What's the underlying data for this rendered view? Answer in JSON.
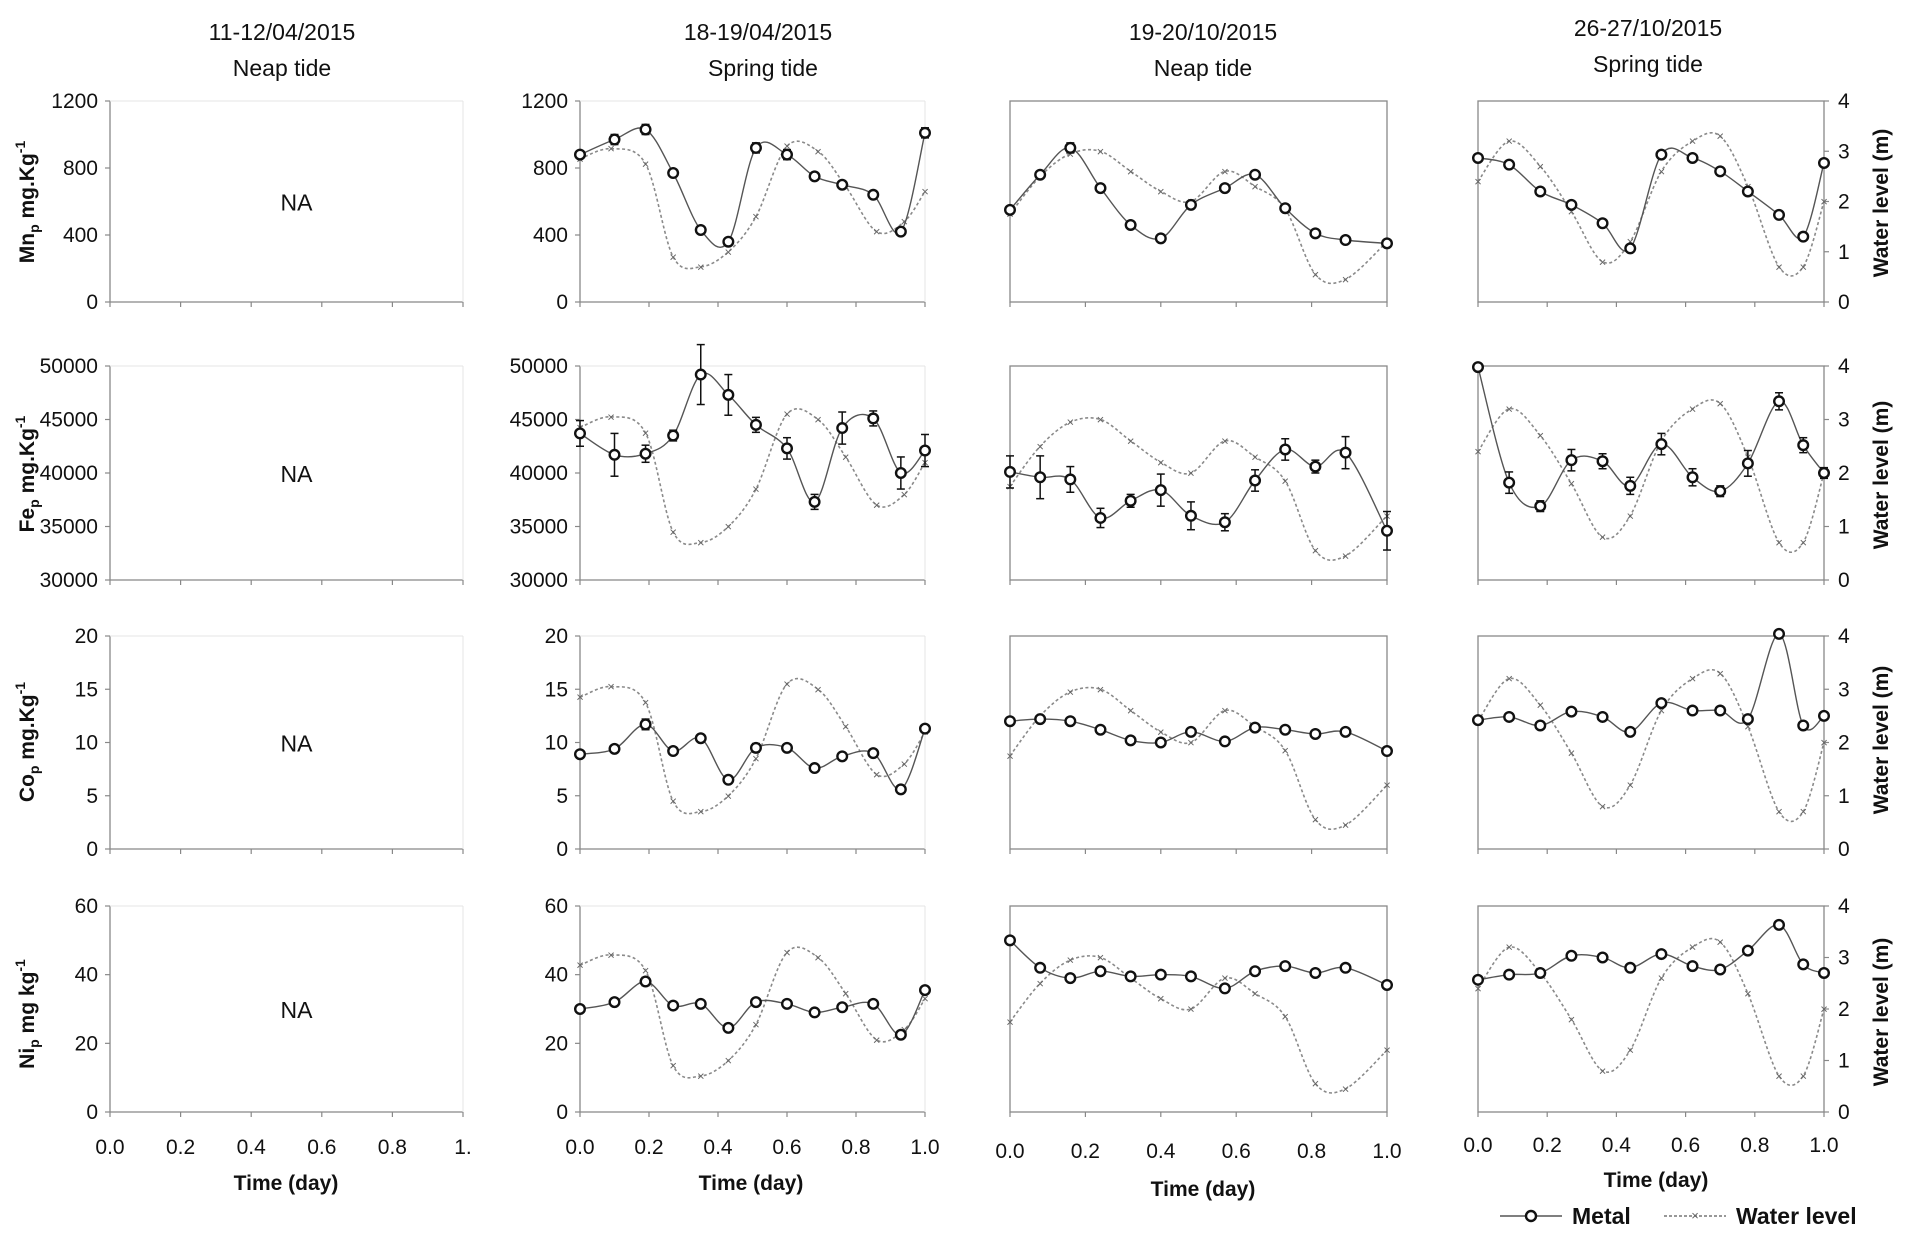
{
  "chart_data": {
    "type": "line",
    "columns": [
      {
        "title": "11-12/04/2015",
        "subtitle": "Neap tide"
      },
      {
        "title": "18-19/04/2015",
        "subtitle": "Spring tide"
      },
      {
        "title": "19-20/10/2015",
        "subtitle": "Neap tide"
      },
      {
        "title": "26-27/10/2015",
        "subtitle": "Spring tide"
      }
    ],
    "rows": [
      {
        "metal": "Mn",
        "ylabel_main": "Mn",
        "ylabel_sub": "p",
        "ylabel_rest": " mg.Kg",
        "ylabel_sup": "-1",
        "ylim": [
          0,
          1200
        ],
        "yticks": [
          "0",
          "400",
          "800",
          "1200"
        ],
        "ytick_values": [
          0,
          400,
          800,
          1200
        ]
      },
      {
        "metal": "Fe",
        "ylabel_main": "Fe",
        "ylabel_sub": "p",
        "ylabel_rest": " mg.Kg",
        "ylabel_sup": "-1",
        "ylim": [
          30000,
          50000
        ],
        "yticks": [
          "30000",
          "35000",
          "40000",
          "45000",
          "50000"
        ],
        "ytick_values": [
          30000,
          35000,
          40000,
          45000,
          50000
        ]
      },
      {
        "metal": "Co",
        "ylabel_main": "Co",
        "ylabel_sub": "p",
        "ylabel_rest": " mg.Kg",
        "ylabel_sup": "-1",
        "ylim": [
          0,
          20
        ],
        "yticks": [
          "0",
          "5",
          "10",
          "15",
          "20"
        ],
        "ytick_values": [
          0,
          5,
          10,
          15,
          20
        ]
      },
      {
        "metal": "Ni",
        "ylabel_main": "Ni",
        "ylabel_sub": "p",
        "ylabel_rest": " mg kg",
        "ylabel_sup": "-1",
        "ylim": [
          0,
          60
        ],
        "yticks": [
          "0",
          "20",
          "40",
          "60"
        ],
        "ytick_values": [
          0,
          20,
          40,
          60
        ]
      }
    ],
    "water_axis": {
      "label": "Water level (m)",
      "ylim": [
        0,
        4
      ],
      "yticks": [
        "0",
        "1",
        "2",
        "3",
        "4"
      ],
      "ytick_values": [
        0,
        1,
        2,
        3,
        4
      ]
    },
    "xaxis": {
      "label_by_column": [
        "Time (day)",
        "Time (day)",
        "Time  (day)",
        "Time (day)"
      ],
      "xlim": [
        0,
        1
      ],
      "xticks_by_column": [
        [
          "0.0",
          "0.2",
          "0.4",
          "0.6",
          "0.8",
          "1."
        ],
        [
          "0.0",
          "0.2",
          "0.4",
          "0.6",
          "0.8",
          "1.0"
        ],
        [
          "0.0",
          "0.2",
          "0.4",
          "0.6",
          "0.8",
          "1.0"
        ],
        [
          "0.0",
          "0.2",
          "0.4",
          "0.6",
          "0.8",
          "1.0"
        ]
      ],
      "xtick_values": [
        0,
        0.2,
        0.4,
        0.6,
        0.8,
        1.0
      ]
    },
    "na_label": "NA",
    "legend": {
      "metal": "Metal",
      "water": "Water level"
    },
    "water_level": {
      "col2": {
        "x": [
          0,
          0.09,
          0.19,
          0.27,
          0.35,
          0.43,
          0.51,
          0.6,
          0.69,
          0.77,
          0.86,
          0.94,
          1.0
        ],
        "y": [
          2.85,
          3.05,
          2.75,
          0.9,
          0.7,
          1.0,
          1.7,
          3.1,
          3.0,
          2.3,
          1.4,
          1.6,
          2.2
        ]
      },
      "col3": {
        "x": [
          0,
          0.08,
          0.16,
          0.24,
          0.32,
          0.4,
          0.48,
          0.57,
          0.65,
          0.73,
          0.81,
          0.89,
          1.0
        ],
        "y": [
          1.75,
          2.5,
          2.95,
          3.0,
          2.6,
          2.2,
          2.0,
          2.6,
          2.3,
          1.85,
          0.55,
          0.45,
          1.2
        ]
      },
      "col4": {
        "x": [
          0,
          0.09,
          0.18,
          0.27,
          0.36,
          0.44,
          0.53,
          0.62,
          0.7,
          0.78,
          0.87,
          0.94,
          1.0
        ],
        "y": [
          2.4,
          3.2,
          2.7,
          1.8,
          0.8,
          1.2,
          2.6,
          3.2,
          3.3,
          2.3,
          0.7,
          0.7,
          2.0
        ]
      }
    },
    "series": [
      {
        "row": "Mn",
        "col": 2,
        "x": [
          0,
          0.1,
          0.19,
          0.27,
          0.35,
          0.43,
          0.51,
          0.6,
          0.68,
          0.76,
          0.85,
          0.93,
          1.0
        ],
        "y": [
          880,
          970,
          1030,
          770,
          430,
          360,
          920,
          880,
          750,
          700,
          640,
          420,
          1010
        ],
        "err": [
          20,
          30,
          30,
          20,
          10,
          20,
          30,
          30,
          20,
          20,
          10,
          10,
          30
        ]
      },
      {
        "row": "Mn",
        "col": 3,
        "x": [
          0,
          0.08,
          0.16,
          0.24,
          0.32,
          0.4,
          0.48,
          0.57,
          0.65,
          0.73,
          0.81,
          0.89,
          1.0
        ],
        "y": [
          550,
          760,
          920,
          680,
          460,
          380,
          580,
          680,
          760,
          560,
          410,
          370,
          350
        ],
        "err": [
          10,
          20,
          30,
          10,
          10,
          10,
          10,
          10,
          20,
          10,
          10,
          10,
          10
        ]
      },
      {
        "row": "Mn",
        "col": 4,
        "x": [
          0,
          0.09,
          0.18,
          0.27,
          0.36,
          0.44,
          0.53,
          0.62,
          0.7,
          0.78,
          0.87,
          0.94,
          1.0
        ],
        "y": [
          860,
          820,
          660,
          580,
          470,
          320,
          880,
          860,
          780,
          660,
          520,
          390,
          830
        ],
        "err": [
          10,
          20,
          10,
          10,
          10,
          10,
          20,
          20,
          20,
          10,
          10,
          10,
          10
        ]
      },
      {
        "row": "Fe",
        "col": 2,
        "x": [
          0,
          0.1,
          0.19,
          0.27,
          0.35,
          0.43,
          0.51,
          0.6,
          0.68,
          0.76,
          0.85,
          0.93,
          1.0
        ],
        "y": [
          43700,
          41700,
          41800,
          43500,
          49200,
          47300,
          44500,
          42300,
          37300,
          44200,
          45100,
          40000,
          42100
        ],
        "err": [
          1200,
          2000,
          800,
          500,
          2800,
          1900,
          700,
          1000,
          700,
          1500,
          700,
          1500,
          1500
        ]
      },
      {
        "row": "Fe",
        "col": 3,
        "x": [
          0,
          0.08,
          0.16,
          0.24,
          0.32,
          0.4,
          0.48,
          0.57,
          0.65,
          0.73,
          0.81,
          0.89,
          1.0
        ],
        "y": [
          40100,
          39600,
          39400,
          35800,
          37400,
          38400,
          36000,
          35400,
          39300,
          42200,
          40600,
          41900,
          34600
        ],
        "err": [
          1500,
          2000,
          1200,
          900,
          600,
          1500,
          1300,
          800,
          1000,
          1000,
          600,
          1500,
          1800
        ]
      },
      {
        "row": "Fe",
        "col": 4,
        "x": [
          0,
          0.09,
          0.18,
          0.27,
          0.36,
          0.44,
          0.53,
          0.62,
          0.7,
          0.78,
          0.87,
          0.94,
          1.0
        ],
        "y": [
          49900,
          39100,
          36900,
          41200,
          41100,
          38800,
          42700,
          39600,
          38300,
          40900,
          46700,
          42600,
          40000
        ],
        "err": [
          0,
          1000,
          500,
          1000,
          700,
          800,
          1000,
          800,
          500,
          1200,
          800,
          700,
          500
        ]
      },
      {
        "row": "Co",
        "col": 2,
        "x": [
          0,
          0.1,
          0.19,
          0.27,
          0.35,
          0.43,
          0.51,
          0.6,
          0.68,
          0.76,
          0.85,
          0.93,
          1.0
        ],
        "y": [
          8.9,
          9.4,
          11.7,
          9.2,
          10.4,
          6.5,
          9.5,
          9.5,
          7.6,
          8.7,
          9.0,
          5.6,
          11.3
        ],
        "err": [
          0.2,
          0.3,
          0.5,
          0.3,
          0.3,
          0.2,
          0.4,
          0.3,
          0.2,
          0.3,
          0.2,
          0.2,
          0.3
        ]
      },
      {
        "row": "Co",
        "col": 3,
        "x": [
          0,
          0.08,
          0.16,
          0.24,
          0.32,
          0.4,
          0.48,
          0.57,
          0.65,
          0.73,
          0.81,
          0.89,
          1.0
        ],
        "y": [
          12.0,
          12.2,
          12.0,
          11.2,
          10.2,
          10.0,
          11.0,
          10.1,
          11.4,
          11.2,
          10.8,
          11.0,
          9.2
        ],
        "err": [
          0.2,
          0.2,
          0.2,
          0.2,
          0.2,
          0.2,
          0.2,
          0.2,
          0.3,
          0.2,
          0.2,
          0.2,
          0.2
        ]
      },
      {
        "row": "Co",
        "col": 4,
        "x": [
          0,
          0.09,
          0.18,
          0.27,
          0.36,
          0.44,
          0.53,
          0.62,
          0.7,
          0.78,
          0.87,
          0.94,
          1.0
        ],
        "y": [
          12.1,
          12.4,
          11.6,
          12.9,
          12.4,
          11.0,
          13.7,
          13.0,
          13.0,
          12.2,
          20.2,
          11.6,
          12.5
        ],
        "err": [
          0.2,
          0.2,
          0.3,
          0.3,
          0.3,
          0.3,
          0.3,
          0.3,
          0.3,
          0.3,
          0.2,
          0.2,
          0.2
        ]
      },
      {
        "row": "Ni",
        "col": 2,
        "x": [
          0,
          0.1,
          0.19,
          0.27,
          0.35,
          0.43,
          0.51,
          0.6,
          0.68,
          0.76,
          0.85,
          0.93,
          1.0
        ],
        "y": [
          30,
          32,
          38,
          31,
          31.5,
          24.5,
          32,
          31.5,
          29,
          30.5,
          31.5,
          22.5,
          35.5
        ],
        "err": [
          0.5,
          0.8,
          1.2,
          0.6,
          0.6,
          0.6,
          0.6,
          0.6,
          0.6,
          0.8,
          0.6,
          0.6,
          0.8
        ]
      },
      {
        "row": "Ni",
        "col": 3,
        "x": [
          0,
          0.08,
          0.16,
          0.24,
          0.32,
          0.4,
          0.48,
          0.57,
          0.65,
          0.73,
          0.81,
          0.89,
          1.0
        ],
        "y": [
          50,
          42,
          39,
          41,
          39.5,
          40,
          39.5,
          36,
          41,
          42.5,
          40.5,
          42,
          37
        ],
        "err": [
          0.5,
          0.8,
          0.6,
          0.6,
          0.6,
          0.6,
          0.6,
          0.6,
          0.6,
          0.6,
          0.6,
          0.6,
          0.6
        ]
      },
      {
        "row": "Ni",
        "col": 4,
        "x": [
          0,
          0.09,
          0.18,
          0.27,
          0.36,
          0.44,
          0.53,
          0.62,
          0.7,
          0.78,
          0.87,
          0.94,
          1.0
        ],
        "y": [
          38.5,
          40,
          40.5,
          45.5,
          45,
          42,
          46,
          42.5,
          41.5,
          47,
          54.5,
          43,
          40.5
        ],
        "err": [
          0.6,
          0.6,
          0.6,
          0.6,
          0.8,
          0.6,
          0.8,
          0.6,
          0.6,
          0.8,
          1.0,
          0.6,
          0.6
        ]
      }
    ]
  }
}
